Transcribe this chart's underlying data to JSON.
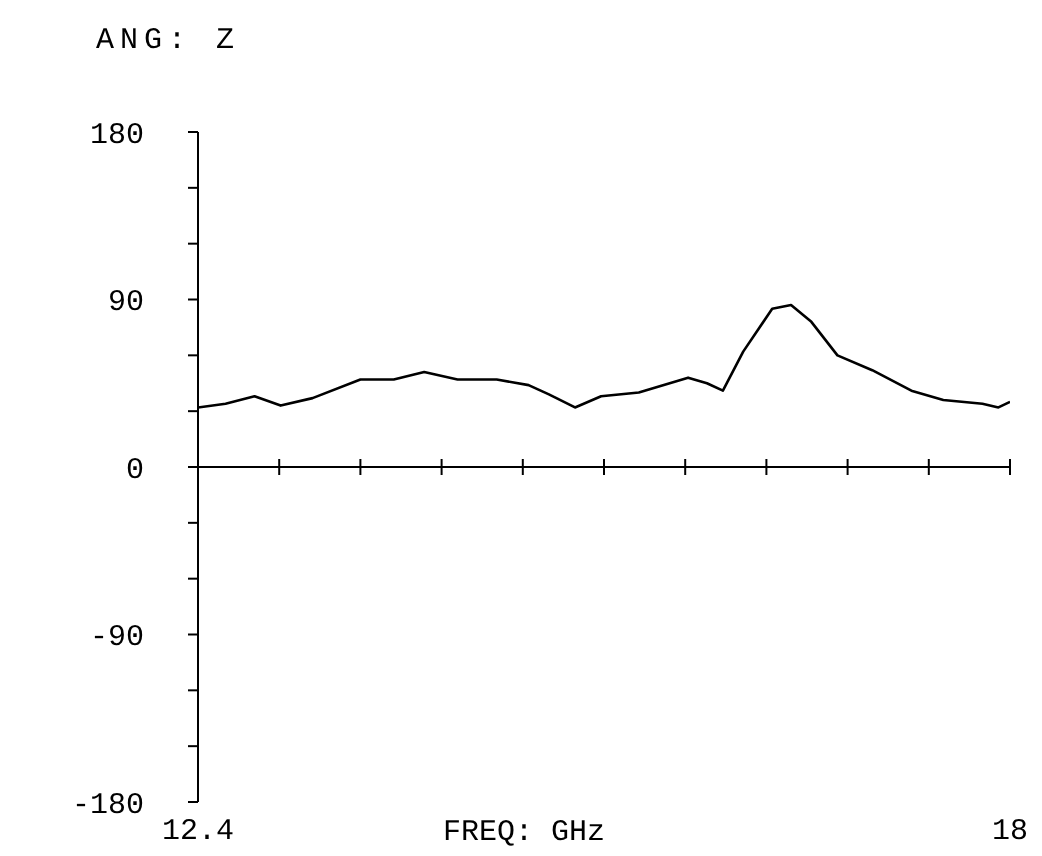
{
  "chart_data": {
    "type": "line",
    "title": "ANG: Z",
    "xlabel": "FREQ: GHz",
    "x": [
      12.4,
      12.59,
      12.79,
      12.97,
      13.19,
      13.52,
      13.75,
      13.96,
      14.19,
      14.46,
      14.68,
      14.82,
      15.0,
      15.18,
      15.44,
      15.78,
      15.91,
      16.02,
      16.16,
      16.36,
      16.49,
      16.63,
      16.81,
      17.05,
      17.32,
      17.54,
      17.81,
      17.92,
      18
    ],
    "series": [
      {
        "color": "#000000",
        "values": [
          32,
          34,
          38,
          33,
          37,
          47,
          47,
          51,
          47,
          47,
          44,
          39,
          32,
          38,
          40,
          48,
          45,
          41,
          62,
          85,
          87,
          78,
          60,
          52,
          41,
          36,
          34,
          32,
          35
        ]
      }
    ],
    "xlim": [
      12.4,
      18
    ],
    "xticks": [
      12.4,
      {
        "value": 12.96,
        "label": null
      },
      {
        "value": 13.52,
        "label": null
      },
      {
        "value": 14.08,
        "label": null
      },
      {
        "value": 14.64,
        "label": null
      },
      {
        "value": 15.2,
        "label": null
      },
      {
        "value": 15.76,
        "label": null
      },
      {
        "value": 16.32,
        "label": null
      },
      {
        "value": 16.88,
        "label": null
      },
      {
        "value": 17.44,
        "label": null
      },
      18
    ],
    "ylim": [
      -180,
      180
    ],
    "yticks": [
      -180,
      {
        "value": -150,
        "label": null
      },
      {
        "value": -120,
        "label": null
      },
      -90,
      {
        "value": -60,
        "label": null
      },
      {
        "value": -30,
        "label": null
      },
      0,
      {
        "value": 30,
        "label": null
      },
      {
        "value": 60,
        "label": null
      },
      90,
      {
        "value": 120,
        "label": null
      },
      {
        "value": 150,
        "label": null
      },
      180
    ],
    "ref_lines": [
      {
        "axis": "y",
        "value": 0,
        "color": "#000000"
      }
    ],
    "marker": "none",
    "line_style": "solid",
    "grid": false,
    "legend": false
  }
}
